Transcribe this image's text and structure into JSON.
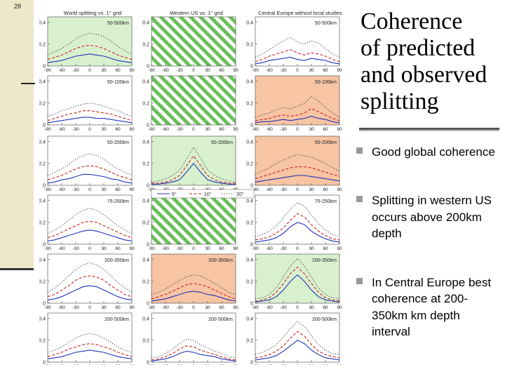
{
  "page_number": "28",
  "title_lines": [
    "Coherence",
    "of predicted",
    "and observed",
    "splitting"
  ],
  "bullets": [
    "Good global coherence",
    "Splitting in western US occurs above 200km depth",
    "In Central Europe best coherence at 200-350km km depth interval"
  ],
  "colors": {
    "green": "#d9f0cf",
    "orange": "#f7c4a4",
    "white": "#ffffff",
    "blue": "#2233bb",
    "red": "#cc2222",
    "dots": "#111111",
    "hatch": "#6abf5a"
  },
  "chart_data": {
    "type": "line",
    "columns": [
      "World splitting vs. 1° grid",
      "Western US vs. 1° grid",
      "Central Europe without local studies"
    ],
    "depth_labels": [
      "50-500km",
      "50-100km",
      "50-200km",
      "75-250km",
      "200-350km",
      "200-500km"
    ],
    "xticks": [
      "-90",
      "-60",
      "-30",
      "0",
      "30",
      "60",
      "90"
    ],
    "yticks": [
      "0",
      "0.2",
      "0.4"
    ],
    "x": [
      -90,
      -75,
      -60,
      -45,
      -30,
      -15,
      0,
      15,
      30,
      45,
      60,
      75,
      90
    ],
    "xlim": [
      -90,
      90
    ],
    "ylim": [
      0,
      0.45
    ],
    "legend": [
      "5°",
      "10°",
      "20°"
    ],
    "panels": [
      {
        "row": 0,
        "col": 0,
        "bg": "green",
        "label": "50-500km",
        "series": [
          [
            0.03,
            0.04,
            0.05,
            0.07,
            0.09,
            0.1,
            0.11,
            0.1,
            0.09,
            0.07,
            0.05,
            0.04,
            0.03
          ],
          [
            0.06,
            0.08,
            0.1,
            0.13,
            0.16,
            0.18,
            0.19,
            0.18,
            0.16,
            0.13,
            0.1,
            0.08,
            0.06
          ],
          [
            0.1,
            0.13,
            0.16,
            0.2,
            0.25,
            0.28,
            0.3,
            0.29,
            0.27,
            0.23,
            0.18,
            0.14,
            0.11
          ]
        ]
      },
      {
        "row": 0,
        "col": 1,
        "bg": "hatch",
        "label": "",
        "series": []
      },
      {
        "row": 0,
        "col": 2,
        "bg": "white",
        "label": "50-500km",
        "series": [
          [
            0.02,
            0.03,
            0.05,
            0.06,
            0.07,
            0.08,
            0.06,
            0.05,
            0.07,
            0.06,
            0.05,
            0.03,
            0.02
          ],
          [
            0.04,
            0.06,
            0.09,
            0.11,
            0.13,
            0.15,
            0.12,
            0.1,
            0.12,
            0.11,
            0.09,
            0.06,
            0.04
          ],
          [
            0.08,
            0.11,
            0.15,
            0.19,
            0.23,
            0.26,
            0.22,
            0.2,
            0.23,
            0.21,
            0.16,
            0.11,
            0.08
          ]
        ]
      },
      {
        "row": 1,
        "col": 0,
        "bg": "white",
        "label": "50-100km",
        "series": [
          [
            0.02,
            0.03,
            0.04,
            0.05,
            0.06,
            0.07,
            0.07,
            0.06,
            0.06,
            0.05,
            0.04,
            0.03,
            0.02
          ],
          [
            0.04,
            0.06,
            0.08,
            0.1,
            0.11,
            0.13,
            0.13,
            0.12,
            0.11,
            0.1,
            0.08,
            0.06,
            0.04
          ],
          [
            0.08,
            0.1,
            0.13,
            0.15,
            0.17,
            0.19,
            0.2,
            0.19,
            0.17,
            0.15,
            0.13,
            0.1,
            0.08
          ]
        ]
      },
      {
        "row": 1,
        "col": 1,
        "bg": "hatch",
        "label": "",
        "series": []
      },
      {
        "row": 1,
        "col": 2,
        "bg": "orange",
        "label": "50-100km",
        "series": [
          [
            0.02,
            0.03,
            0.03,
            0.04,
            0.05,
            0.04,
            0.05,
            0.06,
            0.08,
            0.06,
            0.05,
            0.03,
            0.02
          ],
          [
            0.04,
            0.05,
            0.06,
            0.08,
            0.09,
            0.08,
            0.09,
            0.11,
            0.15,
            0.12,
            0.09,
            0.06,
            0.04
          ],
          [
            0.07,
            0.09,
            0.11,
            0.14,
            0.16,
            0.15,
            0.17,
            0.2,
            0.26,
            0.22,
            0.16,
            0.11,
            0.07
          ]
        ]
      },
      {
        "row": 2,
        "col": 0,
        "bg": "white",
        "label": "50-200km",
        "series": [
          [
            0.02,
            0.03,
            0.05,
            0.06,
            0.08,
            0.1,
            0.1,
            0.09,
            0.08,
            0.06,
            0.05,
            0.03,
            0.02
          ],
          [
            0.05,
            0.07,
            0.09,
            0.12,
            0.15,
            0.17,
            0.18,
            0.17,
            0.15,
            0.12,
            0.09,
            0.07,
            0.05
          ],
          [
            0.09,
            0.12,
            0.15,
            0.19,
            0.24,
            0.27,
            0.29,
            0.27,
            0.24,
            0.19,
            0.15,
            0.12,
            0.09
          ]
        ]
      },
      {
        "row": 2,
        "col": 1,
        "bg": "green",
        "label": "50-200km",
        "series": [
          [
            0.01,
            0.01,
            0.02,
            0.03,
            0.05,
            0.12,
            0.2,
            0.12,
            0.05,
            0.03,
            0.02,
            0.01,
            0.01
          ],
          [
            0.02,
            0.02,
            0.03,
            0.05,
            0.09,
            0.18,
            0.27,
            0.18,
            0.09,
            0.05,
            0.03,
            0.02,
            0.02
          ],
          [
            0.03,
            0.04,
            0.06,
            0.09,
            0.14,
            0.24,
            0.35,
            0.25,
            0.14,
            0.09,
            0.06,
            0.04,
            0.03
          ]
        ]
      },
      {
        "row": 2,
        "col": 2,
        "bg": "orange",
        "label": "50-200km",
        "series": [
          [
            0.03,
            0.04,
            0.05,
            0.06,
            0.07,
            0.08,
            0.09,
            0.09,
            0.08,
            0.07,
            0.06,
            0.05,
            0.04
          ],
          [
            0.06,
            0.08,
            0.1,
            0.12,
            0.14,
            0.16,
            0.17,
            0.17,
            0.16,
            0.14,
            0.12,
            0.1,
            0.08
          ],
          [
            0.1,
            0.13,
            0.16,
            0.2,
            0.23,
            0.26,
            0.28,
            0.27,
            0.26,
            0.23,
            0.2,
            0.16,
            0.13
          ]
        ]
      },
      {
        "row": 3,
        "col": 0,
        "bg": "white",
        "label": "75-250km",
        "series": [
          [
            0.03,
            0.04,
            0.06,
            0.08,
            0.1,
            0.12,
            0.13,
            0.12,
            0.1,
            0.08,
            0.06,
            0.04,
            0.03
          ],
          [
            0.06,
            0.08,
            0.11,
            0.14,
            0.17,
            0.2,
            0.21,
            0.2,
            0.17,
            0.14,
            0.11,
            0.08,
            0.06
          ],
          [
            0.1,
            0.13,
            0.17,
            0.22,
            0.27,
            0.31,
            0.33,
            0.31,
            0.27,
            0.22,
            0.17,
            0.13,
            0.1
          ]
        ]
      },
      {
        "row": 3,
        "col": 1,
        "bg": "hatch",
        "label": "",
        "series": []
      },
      {
        "row": 3,
        "col": 2,
        "bg": "white",
        "label": "75-250km",
        "series": [
          [
            0.02,
            0.03,
            0.04,
            0.06,
            0.1,
            0.16,
            0.2,
            0.18,
            0.12,
            0.08,
            0.05,
            0.03,
            0.02
          ],
          [
            0.04,
            0.05,
            0.07,
            0.1,
            0.15,
            0.22,
            0.28,
            0.25,
            0.18,
            0.12,
            0.08,
            0.05,
            0.04
          ],
          [
            0.07,
            0.09,
            0.12,
            0.17,
            0.24,
            0.32,
            0.38,
            0.35,
            0.27,
            0.19,
            0.13,
            0.09,
            0.07
          ]
        ]
      },
      {
        "row": 4,
        "col": 0,
        "bg": "white",
        "label": "200-350km",
        "series": [
          [
            0.03,
            0.04,
            0.06,
            0.09,
            0.12,
            0.15,
            0.16,
            0.15,
            0.12,
            0.09,
            0.06,
            0.04,
            0.03
          ],
          [
            0.06,
            0.08,
            0.12,
            0.16,
            0.21,
            0.24,
            0.25,
            0.24,
            0.21,
            0.16,
            0.12,
            0.08,
            0.06
          ],
          [
            0.1,
            0.14,
            0.19,
            0.25,
            0.31,
            0.35,
            0.37,
            0.35,
            0.31,
            0.25,
            0.19,
            0.14,
            0.1
          ]
        ]
      },
      {
        "row": 4,
        "col": 1,
        "bg": "orange",
        "label": "200-350km",
        "series": [
          [
            0.02,
            0.03,
            0.04,
            0.06,
            0.08,
            0.1,
            0.11,
            0.1,
            0.08,
            0.07,
            0.05,
            0.03,
            0.02
          ],
          [
            0.04,
            0.06,
            0.08,
            0.11,
            0.14,
            0.17,
            0.18,
            0.17,
            0.15,
            0.12,
            0.09,
            0.06,
            0.04
          ],
          [
            0.08,
            0.1,
            0.13,
            0.17,
            0.21,
            0.24,
            0.26,
            0.25,
            0.22,
            0.18,
            0.14,
            0.1,
            0.08
          ]
        ]
      },
      {
        "row": 4,
        "col": 2,
        "bg": "green",
        "label": "200-350km",
        "series": [
          [
            0.01,
            0.02,
            0.03,
            0.06,
            0.12,
            0.2,
            0.26,
            0.2,
            0.12,
            0.06,
            0.03,
            0.02,
            0.01
          ],
          [
            0.02,
            0.03,
            0.05,
            0.1,
            0.18,
            0.27,
            0.33,
            0.27,
            0.18,
            0.1,
            0.05,
            0.03,
            0.02
          ],
          [
            0.04,
            0.05,
            0.08,
            0.14,
            0.24,
            0.34,
            0.41,
            0.34,
            0.24,
            0.14,
            0.08,
            0.05,
            0.04
          ]
        ]
      },
      {
        "row": 5,
        "col": 0,
        "bg": "white",
        "label": "200-500km",
        "series": [
          [
            0.03,
            0.04,
            0.05,
            0.07,
            0.09,
            0.1,
            0.11,
            0.1,
            0.09,
            0.07,
            0.05,
            0.04,
            0.03
          ],
          [
            0.05,
            0.07,
            0.09,
            0.12,
            0.14,
            0.16,
            0.17,
            0.16,
            0.14,
            0.12,
            0.09,
            0.07,
            0.05
          ],
          [
            0.09,
            0.11,
            0.14,
            0.18,
            0.22,
            0.25,
            0.26,
            0.25,
            0.22,
            0.18,
            0.14,
            0.11,
            0.09
          ]
        ]
      },
      {
        "row": 5,
        "col": 1,
        "bg": "white",
        "label": "200-500km",
        "series": [
          [
            0.01,
            0.02,
            0.03,
            0.05,
            0.08,
            0.1,
            0.09,
            0.07,
            0.06,
            0.05,
            0.03,
            0.02,
            0.01
          ],
          [
            0.02,
            0.03,
            0.05,
            0.08,
            0.12,
            0.15,
            0.14,
            0.11,
            0.09,
            0.07,
            0.05,
            0.03,
            0.02
          ],
          [
            0.04,
            0.05,
            0.08,
            0.12,
            0.17,
            0.21,
            0.2,
            0.16,
            0.13,
            0.1,
            0.08,
            0.05,
            0.04
          ]
        ]
      },
      {
        "row": 5,
        "col": 2,
        "bg": "white",
        "label": "200-500km",
        "series": [
          [
            0.02,
            0.03,
            0.04,
            0.06,
            0.1,
            0.15,
            0.2,
            0.17,
            0.11,
            0.07,
            0.04,
            0.03,
            0.02
          ],
          [
            0.04,
            0.05,
            0.07,
            0.1,
            0.15,
            0.22,
            0.28,
            0.24,
            0.16,
            0.1,
            0.07,
            0.05,
            0.04
          ],
          [
            0.07,
            0.09,
            0.12,
            0.16,
            0.23,
            0.31,
            0.37,
            0.33,
            0.24,
            0.16,
            0.11,
            0.08,
            0.07
          ]
        ]
      }
    ]
  }
}
